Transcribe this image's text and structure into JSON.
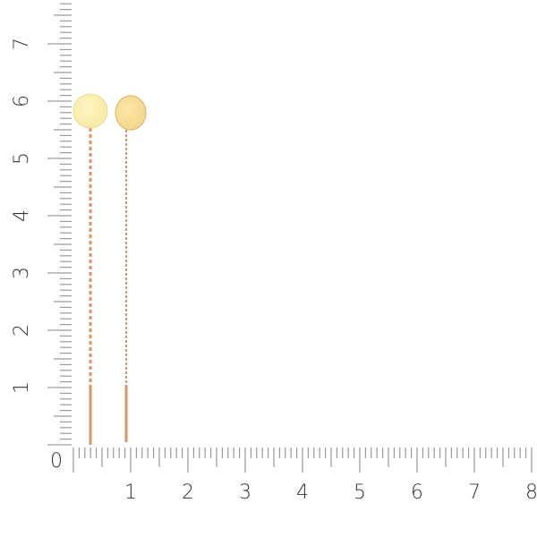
{
  "ruler": {
    "unit": "cm",
    "origin_label": "0",
    "x_labels": [
      "1",
      "2",
      "3",
      "4",
      "5",
      "6",
      "7",
      "8"
    ],
    "y_labels": [
      "1",
      "2",
      "3",
      "4",
      "5",
      "6",
      "7"
    ],
    "tick_color": "#9a9a9a",
    "label_color": "#333333"
  },
  "product": {
    "items": [
      {
        "name": "earring-left",
        "disc_color": "#fdf6c2",
        "chain_color": "#d8956b"
      },
      {
        "name": "earring-right",
        "disc_color": "#fbe6a5",
        "chain_color": "#d8956b"
      }
    ]
  }
}
